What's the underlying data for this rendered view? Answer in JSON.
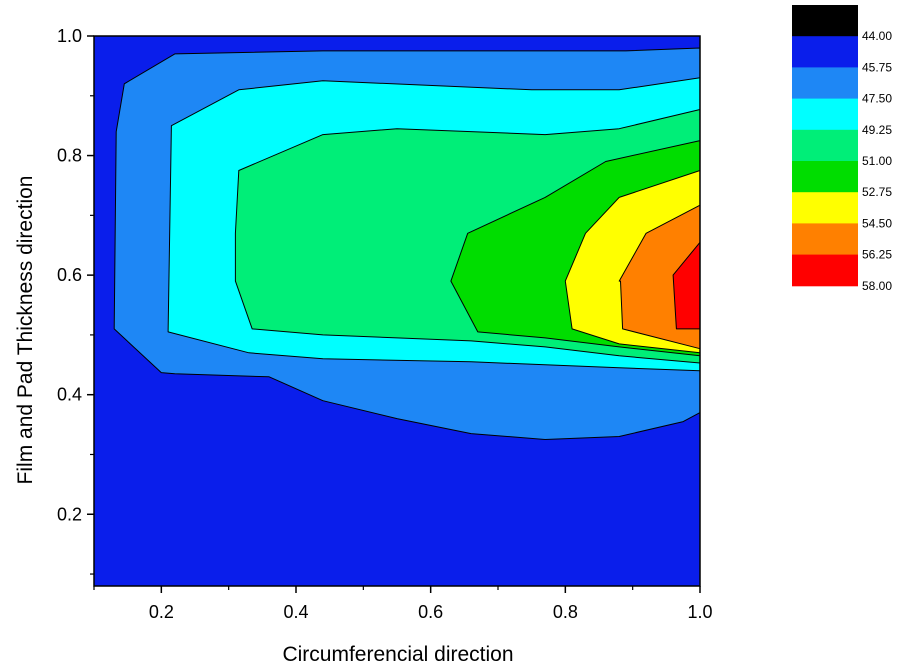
{
  "chart_data": {
    "type": "contour",
    "xlabel": "Circumferencial direction",
    "ylabel": "Film and Pad  Thickness direction",
    "xlim": [
      0.1,
      1.0
    ],
    "ylim": [
      0.08,
      1.0
    ],
    "x_ticks": [
      "0.2",
      "0.4",
      "0.6",
      "0.8",
      "1.0"
    ],
    "y_ticks": [
      "0.2",
      "0.4",
      "0.6",
      "0.8",
      "1.0"
    ],
    "grid": false,
    "legend_position": "top-right",
    "levels": [
      "44.00",
      "45.75",
      "47.50",
      "49.25",
      "51.00",
      "52.75",
      "54.50",
      "56.25",
      "58.00"
    ],
    "level_colors": [
      "#000000",
      "#0a1eeb",
      "#1e87f5",
      "#00ffff",
      "#00ee78",
      "#00dd00",
      "#ffff00",
      "#ff8000",
      "#ff0000"
    ],
    "contour_regions": [
      {
        "level": "45.75",
        "color": "#1e87f5",
        "points": [
          [
            0.13,
            0.51
          ],
          [
            0.133,
            0.84
          ],
          [
            0.145,
            0.92
          ],
          [
            0.22,
            0.97
          ],
          [
            0.44,
            0.975
          ],
          [
            0.75,
            0.975
          ],
          [
            0.89,
            0.975
          ],
          [
            1.0,
            0.98
          ],
          [
            1.0,
            0.37
          ],
          [
            0.975,
            0.355
          ],
          [
            0.88,
            0.33
          ],
          [
            0.77,
            0.325
          ],
          [
            0.66,
            0.335
          ],
          [
            0.55,
            0.36
          ],
          [
            0.44,
            0.39
          ],
          [
            0.36,
            0.43
          ],
          [
            0.22,
            0.435
          ],
          [
            0.2,
            0.437
          ]
        ]
      },
      {
        "level": "47.50",
        "color": "#00ffff",
        "points": [
          [
            0.21,
            0.505
          ],
          [
            0.215,
            0.85
          ],
          [
            0.315,
            0.91
          ],
          [
            0.44,
            0.925
          ],
          [
            0.75,
            0.91
          ],
          [
            0.88,
            0.91
          ],
          [
            1.0,
            0.93
          ],
          [
            1.0,
            0.44
          ],
          [
            0.88,
            0.445
          ],
          [
            0.66,
            0.455
          ],
          [
            0.44,
            0.46
          ],
          [
            0.33,
            0.47
          ],
          [
            0.21,
            0.505
          ]
        ]
      },
      {
        "level": "49.25",
        "color": "#00ee78",
        "points": [
          [
            0.31,
            0.67
          ],
          [
            0.315,
            0.775
          ],
          [
            0.44,
            0.835
          ],
          [
            0.55,
            0.845
          ],
          [
            0.77,
            0.835
          ],
          [
            0.88,
            0.845
          ],
          [
            1.0,
            0.877
          ],
          [
            1.0,
            0.453
          ],
          [
            0.88,
            0.465
          ],
          [
            0.77,
            0.48
          ],
          [
            0.66,
            0.49
          ],
          [
            0.55,
            0.495
          ],
          [
            0.44,
            0.5
          ],
          [
            0.335,
            0.51
          ],
          [
            0.31,
            0.59
          ]
        ]
      },
      {
        "level": "51.00",
        "color": "#00dd00",
        "points": [
          [
            0.63,
            0.59
          ],
          [
            0.655,
            0.67
          ],
          [
            0.77,
            0.73
          ],
          [
            0.86,
            0.79
          ],
          [
            1.0,
            0.825
          ],
          [
            1.0,
            0.465
          ],
          [
            0.88,
            0.48
          ],
          [
            0.77,
            0.495
          ],
          [
            0.67,
            0.505
          ]
        ]
      },
      {
        "level": "52.75",
        "color": "#ffff00",
        "points": [
          [
            0.8,
            0.59
          ],
          [
            0.83,
            0.67
          ],
          [
            0.88,
            0.73
          ],
          [
            1.0,
            0.775
          ],
          [
            1.0,
            0.47
          ],
          [
            0.88,
            0.485
          ],
          [
            0.81,
            0.51
          ]
        ]
      },
      {
        "level": "54.50",
        "color": "#ff8000",
        "points": [
          [
            0.882,
            0.59
          ],
          [
            0.88,
            0.59
          ],
          [
            0.92,
            0.67
          ],
          [
            1.0,
            0.717
          ],
          [
            1.0,
            0.477
          ],
          [
            0.885,
            0.51
          ]
        ]
      },
      {
        "level": "56.25",
        "color": "#ff0000",
        "points": [
          [
            0.96,
            0.6
          ],
          [
            1.0,
            0.655
          ],
          [
            1.0,
            0.51
          ],
          [
            0.965,
            0.51
          ]
        ]
      }
    ]
  }
}
